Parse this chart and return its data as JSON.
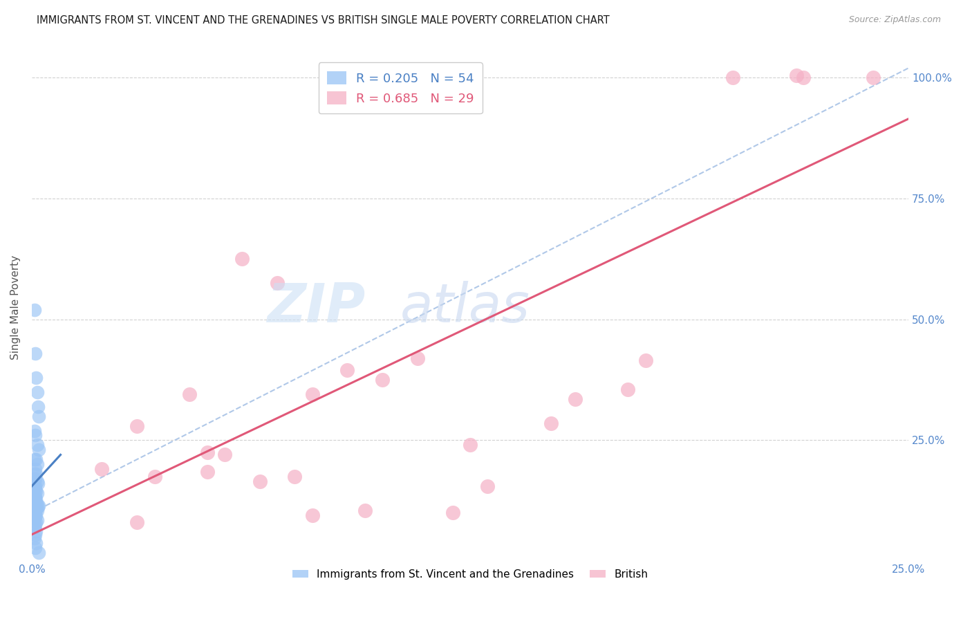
{
  "title": "IMMIGRANTS FROM ST. VINCENT AND THE GRENADINES VS BRITISH SINGLE MALE POVERTY CORRELATION CHART",
  "source": "Source: ZipAtlas.com",
  "ylabel": "Single Male Poverty",
  "xlim": [
    0.0,
    0.25
  ],
  "ylim": [
    0.0,
    1.05
  ],
  "xtick_vals": [
    0.0,
    0.05,
    0.1,
    0.15,
    0.2,
    0.25
  ],
  "xtick_labels": [
    "0.0%",
    "",
    "",
    "",
    "",
    "25.0%"
  ],
  "ytick_vals_right": [
    0.25,
    0.5,
    0.75,
    1.0
  ],
  "ytick_labels_right": [
    "25.0%",
    "50.0%",
    "75.0%",
    "100.0%"
  ],
  "legend_R1": "0.205",
  "legend_N1": "54",
  "legend_R2": "0.685",
  "legend_N2": "29",
  "blue_color": "#99c4f5",
  "pink_color": "#f5b0c5",
  "blue_line_color": "#4a80c4",
  "pink_line_color": "#e05878",
  "blue_dashed_color": "#b0c8e8",
  "axis_label_color": "#5588cc",
  "blue_scatter_x": [
    0.0008,
    0.001,
    0.0012,
    0.0015,
    0.0018,
    0.002,
    0.0008,
    0.001,
    0.0015,
    0.002,
    0.0008,
    0.0012,
    0.0015,
    0.001,
    0.0008,
    0.0012,
    0.001,
    0.0008,
    0.0015,
    0.0018,
    0.0008,
    0.001,
    0.0008,
    0.001,
    0.0012,
    0.0015,
    0.001,
    0.0008,
    0.001,
    0.0012,
    0.0008,
    0.001,
    0.0012,
    0.0015,
    0.002,
    0.0018,
    0.001,
    0.0012,
    0.0015,
    0.001,
    0.0008,
    0.0012,
    0.001,
    0.0008,
    0.0015,
    0.0012,
    0.001,
    0.0008,
    0.0012,
    0.001,
    0.0008,
    0.0012,
    0.001,
    0.002
  ],
  "blue_scatter_y": [
    0.52,
    0.43,
    0.38,
    0.35,
    0.32,
    0.3,
    0.27,
    0.26,
    0.24,
    0.23,
    0.21,
    0.21,
    0.2,
    0.19,
    0.18,
    0.18,
    0.17,
    0.165,
    0.165,
    0.16,
    0.155,
    0.155,
    0.15,
    0.148,
    0.145,
    0.14,
    0.135,
    0.132,
    0.13,
    0.128,
    0.125,
    0.122,
    0.12,
    0.118,
    0.115,
    0.112,
    0.11,
    0.108,
    0.105,
    0.102,
    0.1,
    0.095,
    0.092,
    0.088,
    0.085,
    0.08,
    0.075,
    0.07,
    0.062,
    0.055,
    0.048,
    0.038,
    0.028,
    0.018
  ],
  "pink_scatter_x": [
    0.03,
    0.05,
    0.06,
    0.02,
    0.08,
    0.05,
    0.07,
    0.03,
    0.095,
    0.065,
    0.12,
    0.045,
    0.08,
    0.13,
    0.055,
    0.1,
    0.035,
    0.125,
    0.075,
    0.155,
    0.09,
    0.175,
    0.2,
    0.11,
    0.148,
    0.218,
    0.17,
    0.24,
    0.22
  ],
  "pink_scatter_y": [
    0.08,
    0.185,
    0.625,
    0.19,
    0.095,
    0.225,
    0.575,
    0.28,
    0.105,
    0.165,
    0.1,
    0.345,
    0.345,
    0.155,
    0.22,
    0.375,
    0.175,
    0.24,
    0.175,
    0.335,
    0.395,
    0.415,
    1.0,
    0.42,
    0.285,
    1.005,
    0.355,
    1.0,
    1.0
  ],
  "blue_trend_x": [
    0.0,
    0.0082
  ],
  "blue_trend_y": [
    0.155,
    0.22
  ],
  "pink_trend_x": [
    0.0,
    0.25
  ],
  "pink_trend_y": [
    0.055,
    0.915
  ],
  "blue_dash_trend_x": [
    0.0,
    0.25
  ],
  "blue_dash_trend_y": [
    0.1,
    1.02
  ]
}
